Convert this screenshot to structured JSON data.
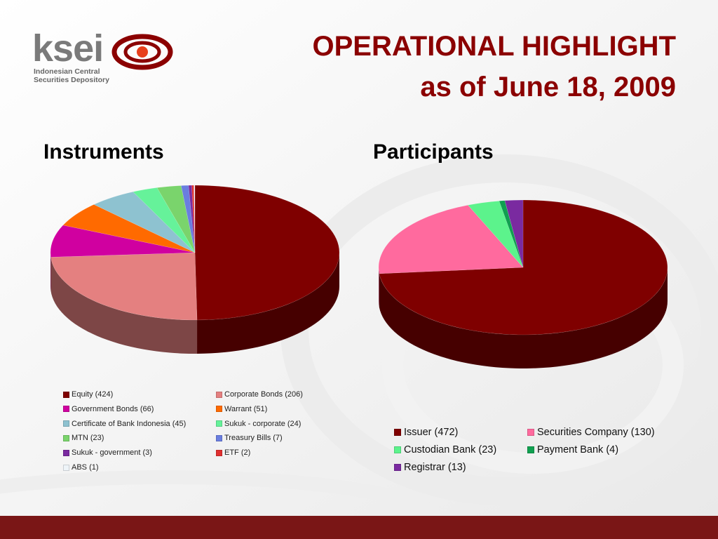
{
  "header": {
    "title_line1": "OPERATIONAL HIGHLIGHT",
    "title_line2": "as of June 18, 2009",
    "title_color": "#8b0000"
  },
  "logo": {
    "word": "ksei",
    "sub_line1": "Indonesian Central",
    "sub_line2": "Securities Depository",
    "accent": "#c0392b"
  },
  "sections": {
    "left": "Instruments",
    "right": "Participants"
  },
  "chart_data": [
    {
      "type": "pie",
      "title": "Instruments",
      "categories": [
        "Equity",
        "Corporate Bonds",
        "Government Bonds",
        "Warrant",
        "Certificate of Bank Indonesia",
        "Sukuk - corporate",
        "MTN",
        "Treasury Bills",
        "Sukuk - government",
        "ETF",
        "ABS"
      ],
      "values": [
        424,
        206,
        66,
        51,
        45,
        24,
        23,
        7,
        3,
        2,
        1
      ],
      "labels": [
        "Equity (424)",
        "Corporate Bonds (206)",
        "Government Bonds (66)",
        "Warrant (51)",
        "Certificate of Bank Indonesia (45)",
        "Sukuk - corporate (24)",
        "MTN (23)",
        "Treasury Bills (7)",
        "Sukuk - government (3)",
        "ETF (2)",
        "ABS (1)"
      ],
      "colors": [
        "#7f0000",
        "#e48080",
        "#d000a0",
        "#ff6a00",
        "#8ec2d0",
        "#66f29a",
        "#7ad46c",
        "#6a7ee0",
        "#7a2aa0",
        "#e03030",
        "#eef4f8"
      ],
      "legend": "bottom"
    },
    {
      "type": "pie",
      "title": "Participants",
      "categories": [
        "Issuer",
        "Securities Company",
        "Custodian Bank",
        "Payment Bank",
        "Registrar"
      ],
      "values": [
        472,
        130,
        23,
        4,
        13
      ],
      "labels": [
        "Issuer (472)",
        "Securities Company (130)",
        "Custodian Bank (23)",
        "Payment Bank (4)",
        "Registrar (13)"
      ],
      "colors": [
        "#7f0000",
        "#ff6a9e",
        "#5cf38c",
        "#10a050",
        "#7a2aa0"
      ],
      "legend": "bottom"
    }
  ]
}
